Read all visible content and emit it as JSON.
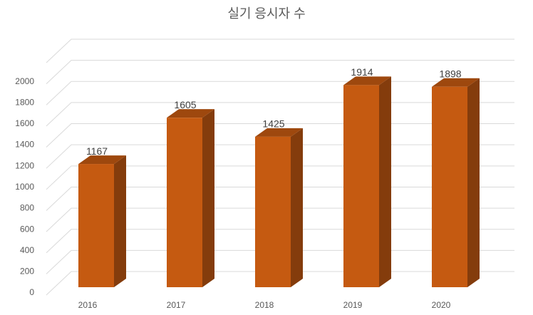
{
  "chart_data": {
    "type": "bar3d",
    "title": "실기 응시자 수",
    "categories": [
      "2016",
      "2017",
      "2018",
      "2019",
      "2020"
    ],
    "values": [
      1167,
      1605,
      1425,
      1914,
      1898
    ],
    "color": "#c55a11",
    "ylim": [
      0,
      2200
    ],
    "yticks": [
      0,
      200,
      400,
      600,
      800,
      1000,
      1200,
      1400,
      1600,
      1800,
      2000
    ],
    "grid": true
  }
}
